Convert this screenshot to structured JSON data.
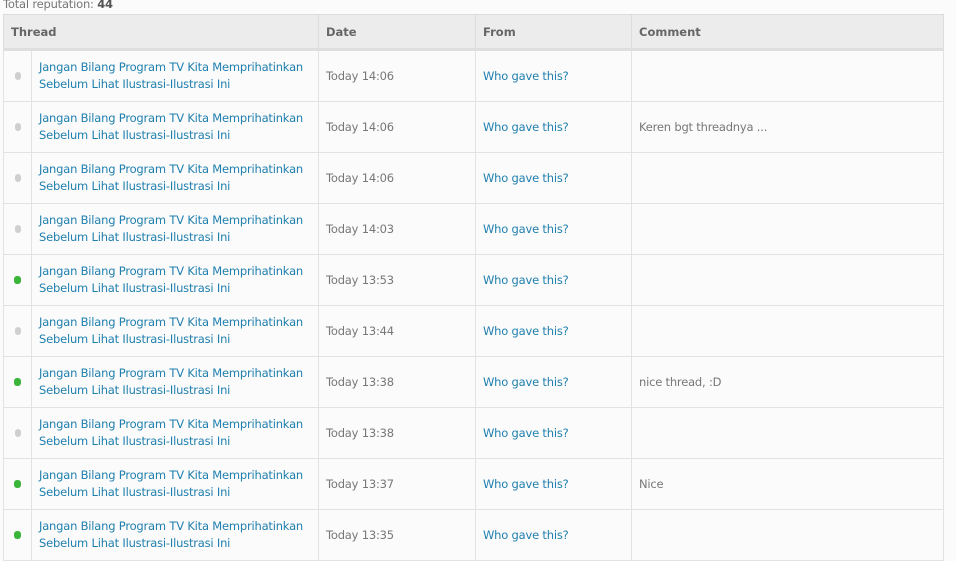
{
  "total_label": "Total reputation:",
  "total_value": "44",
  "colors": {
    "positive": "#3ab53a",
    "neutral": "#cfcfcf",
    "link": "#1f7fae"
  },
  "headers": [
    "Thread",
    "Date",
    "From",
    "Comment"
  ],
  "rows": [
    {
      "status": "neutral",
      "thread": "Jangan Bilang Program TV Kita Memprihatinkan Sebelum Lihat Ilustrasi-Ilustrasi Ini",
      "date": "Today 14:06",
      "from": "Who gave this?",
      "comment": ""
    },
    {
      "status": "neutral",
      "thread": "Jangan Bilang Program TV Kita Memprihatinkan Sebelum Lihat Ilustrasi-Ilustrasi Ini",
      "date": "Today 14:06",
      "from": "Who gave this?",
      "comment": "Keren bgt threadnya ..."
    },
    {
      "status": "neutral",
      "thread": "Jangan Bilang Program TV Kita Memprihatinkan Sebelum Lihat Ilustrasi-Ilustrasi Ini",
      "date": "Today 14:06",
      "from": "Who gave this?",
      "comment": ""
    },
    {
      "status": "neutral",
      "thread": "Jangan Bilang Program TV Kita Memprihatinkan Sebelum Lihat Ilustrasi-Ilustrasi Ini",
      "date": "Today 14:03",
      "from": "Who gave this?",
      "comment": ""
    },
    {
      "status": "positive",
      "thread": "Jangan Bilang Program TV Kita Memprihatinkan Sebelum Lihat Ilustrasi-Ilustrasi Ini",
      "date": "Today 13:53",
      "from": "Who gave this?",
      "comment": ""
    },
    {
      "status": "neutral",
      "thread": "Jangan Bilang Program TV Kita Memprihatinkan Sebelum Lihat Ilustrasi-Ilustrasi Ini",
      "date": "Today 13:44",
      "from": "Who gave this?",
      "comment": ""
    },
    {
      "status": "positive",
      "thread": "Jangan Bilang Program TV Kita Memprihatinkan Sebelum Lihat Ilustrasi-Ilustrasi Ini",
      "date": "Today 13:38",
      "from": "Who gave this?",
      "comment": "nice thread, :D"
    },
    {
      "status": "neutral",
      "thread": "Jangan Bilang Program TV Kita Memprihatinkan Sebelum Lihat Ilustrasi-Ilustrasi Ini",
      "date": "Today 13:38",
      "from": "Who gave this?",
      "comment": ""
    },
    {
      "status": "positive",
      "thread": "Jangan Bilang Program TV Kita Memprihatinkan Sebelum Lihat Ilustrasi-Ilustrasi Ini",
      "date": "Today 13:37",
      "from": "Who gave this?",
      "comment": "Nice"
    },
    {
      "status": "positive",
      "thread": "Jangan Bilang Program TV Kita Memprihatinkan Sebelum Lihat Ilustrasi-Ilustrasi Ini",
      "date": "Today 13:35",
      "from": "Who gave this?",
      "comment": ""
    }
  ]
}
